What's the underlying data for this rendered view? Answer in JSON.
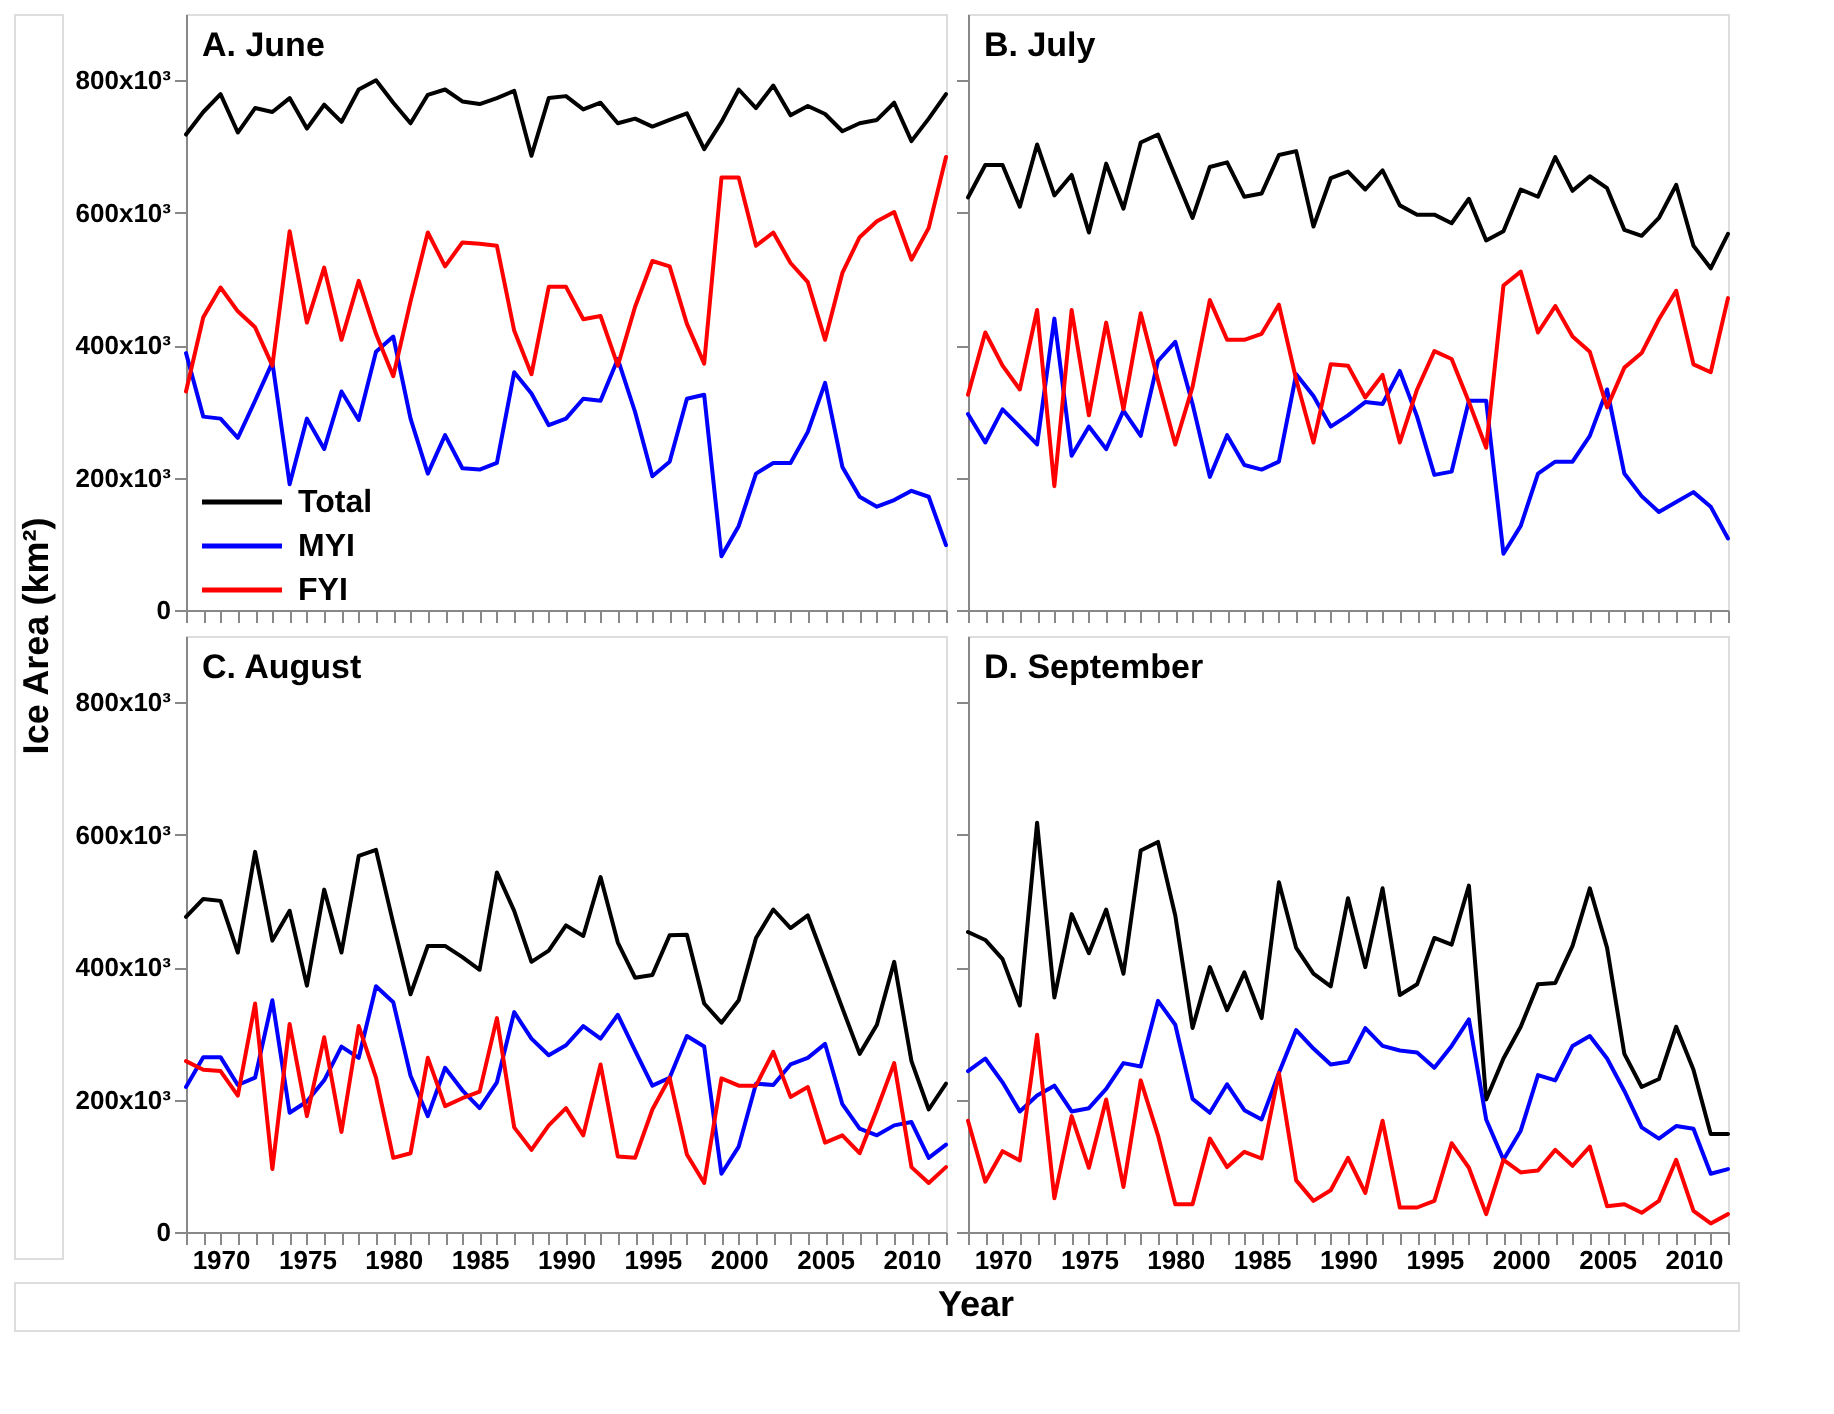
{
  "chart_data": [
    {
      "type": "line",
      "title": "A. June",
      "ylabel": "Ice Area (km²)",
      "legend": "bottom left",
      "grid": false,
      "tick_labels": "y",
      "xlim": [
        1968,
        2012
      ],
      "ylim": [
        0,
        900000
      ],
      "yticks": [
        0,
        {
          "value": 200000,
          "label": "200x10³"
        },
        {
          "value": 400000,
          "label": "400x10³"
        },
        {
          "value": 600000,
          "label": "600x10³"
        },
        {
          "value": 800000,
          "label": "800x10³"
        }
      ],
      "xticks": [
        {
          "value": 1968,
          "label": null
        },
        {
          "value": 1969,
          "label": null
        },
        1970,
        {
          "value": 1971,
          "label": null
        },
        {
          "value": 1972,
          "label": null
        },
        {
          "value": 1973,
          "label": null
        },
        {
          "value": 1974,
          "label": null
        },
        1975,
        {
          "value": 1976,
          "label": null
        },
        {
          "value": 1977,
          "label": null
        },
        {
          "value": 1978,
          "label": null
        },
        {
          "value": 1979,
          "label": null
        },
        1980,
        {
          "value": 1981,
          "label": null
        },
        {
          "value": 1982,
          "label": null
        },
        {
          "value": 1983,
          "label": null
        },
        {
          "value": 1984,
          "label": null
        },
        1985,
        {
          "value": 1986,
          "label": null
        },
        {
          "value": 1987,
          "label": null
        },
        {
          "value": 1988,
          "label": null
        },
        {
          "value": 1989,
          "label": null
        },
        1990,
        {
          "value": 1991,
          "label": null
        },
        {
          "value": 1992,
          "label": null
        },
        {
          "value": 1993,
          "label": null
        },
        {
          "value": 1994,
          "label": null
        },
        1995,
        {
          "value": 1996,
          "label": null
        },
        {
          "value": 1997,
          "label": null
        },
        {
          "value": 1998,
          "label": null
        },
        {
          "value": 1999,
          "label": null
        },
        2000,
        {
          "value": 2001,
          "label": null
        },
        {
          "value": 2002,
          "label": null
        },
        {
          "value": 2003,
          "label": null
        },
        {
          "value": 2004,
          "label": null
        },
        2005,
        {
          "value": 2006,
          "label": null
        },
        {
          "value": 2007,
          "label": null
        },
        {
          "value": 2008,
          "label": null
        },
        {
          "value": 2009,
          "label": null
        },
        2010,
        {
          "value": 2011,
          "label": null
        },
        {
          "value": 2012,
          "label": null
        }
      ],
      "x": [
        1968,
        1969,
        1970,
        1971,
        1972,
        1973,
        1974,
        1975,
        1976,
        1977,
        1978,
        1979,
        1980,
        1981,
        1982,
        1983,
        1984,
        1985,
        1986,
        1987,
        1988,
        1989,
        1990,
        1991,
        1992,
        1993,
        1994,
        1995,
        1996,
        1997,
        1998,
        1999,
        2000,
        2001,
        2002,
        2003,
        2004,
        2005,
        2006,
        2007,
        2008,
        2009,
        2010,
        2011,
        2012
      ],
      "series": [
        {
          "name": "Total",
          "color": "#000000",
          "values": [
            718000,
            752000,
            779000,
            721000,
            758000,
            752000,
            773000,
            727000,
            763000,
            737000,
            786000,
            800000,
            766000,
            735000,
            778000,
            786000,
            768000,
            764000,
            773000,
            784000,
            686000,
            773000,
            776000,
            756000,
            766000,
            735000,
            742000,
            730000,
            740000,
            750000,
            696000,
            737000,
            786000,
            758000,
            792000,
            747000,
            761000,
            749000,
            723000,
            735000,
            740000,
            766000,
            708000,
            742000,
            779000
          ]
        },
        {
          "name": "MYI",
          "color": "#0000ff",
          "values": [
            388000,
            292000,
            289000,
            260000,
            316000,
            374000,
            190000,
            289000,
            243000,
            330000,
            287000,
            390000,
            413000,
            289000,
            206000,
            264000,
            214000,
            212000,
            222000,
            359000,
            327000,
            279000,
            289000,
            319000,
            316000,
            379000,
            299000,
            202000,
            224000,
            319000,
            325000,
            81000,
            127000,
            206000,
            222000,
            222000,
            269000,
            343000,
            216000,
            171000,
            156000,
            166000,
            180000,
            171000,
            98000
          ]
        },
        {
          "name": "FYI",
          "color": "#ff0000",
          "values": [
            330000,
            442000,
            487000,
            451000,
            427000,
            369000,
            572000,
            434000,
            517000,
            408000,
            497000,
            417000,
            353000,
            466000,
            570000,
            519000,
            555000,
            553000,
            550000,
            422000,
            356000,
            488000,
            488000,
            439000,
            444000,
            369000,
            458000,
            527000,
            519000,
            432000,
            372000,
            653000,
            653000,
            550000,
            570000,
            524000,
            495000,
            408000,
            509000,
            563000,
            587000,
            601000,
            529000,
            577000,
            684000
          ]
        }
      ]
    },
    {
      "type": "line",
      "title": "B. July",
      "grid": false,
      "tick_labels": false,
      "xlim": [
        1968,
        2012
      ],
      "ylim": [
        0,
        900000
      ],
      "yticks": [
        {
          "value": 0,
          "label": null
        },
        {
          "value": 200000,
          "label": null
        },
        {
          "value": 400000,
          "label": null
        },
        {
          "value": 600000,
          "label": null
        },
        {
          "value": 800000,
          "label": null
        }
      ],
      "xticks": [
        {
          "value": 1968,
          "label": null
        },
        {
          "value": 1969,
          "label": null
        },
        1970,
        {
          "value": 1971,
          "label": null
        },
        {
          "value": 1972,
          "label": null
        },
        {
          "value": 1973,
          "label": null
        },
        {
          "value": 1974,
          "label": null
        },
        1975,
        {
          "value": 1976,
          "label": null
        },
        {
          "value": 1977,
          "label": null
        },
        {
          "value": 1978,
          "label": null
        },
        {
          "value": 1979,
          "label": null
        },
        1980,
        {
          "value": 1981,
          "label": null
        },
        {
          "value": 1982,
          "label": null
        },
        {
          "value": 1983,
          "label": null
        },
        {
          "value": 1984,
          "label": null
        },
        1985,
        {
          "value": 1986,
          "label": null
        },
        {
          "value": 1987,
          "label": null
        },
        {
          "value": 1988,
          "label": null
        },
        {
          "value": 1989,
          "label": null
        },
        1990,
        {
          "value": 1991,
          "label": null
        },
        {
          "value": 1992,
          "label": null
        },
        {
          "value": 1993,
          "label": null
        },
        {
          "value": 1994,
          "label": null
        },
        1995,
        {
          "value": 1996,
          "label": null
        },
        {
          "value": 1997,
          "label": null
        },
        {
          "value": 1998,
          "label": null
        },
        {
          "value": 1999,
          "label": null
        },
        2000,
        {
          "value": 2001,
          "label": null
        },
        {
          "value": 2002,
          "label": null
        },
        {
          "value": 2003,
          "label": null
        },
        {
          "value": 2004,
          "label": null
        },
        2005,
        {
          "value": 2006,
          "label": null
        },
        {
          "value": 2007,
          "label": null
        },
        {
          "value": 2008,
          "label": null
        },
        {
          "value": 2009,
          "label": null
        },
        2010,
        {
          "value": 2011,
          "label": null
        },
        {
          "value": 2012,
          "label": null
        }
      ],
      "x": [
        1968,
        1969,
        1970,
        1971,
        1972,
        1973,
        1974,
        1975,
        1976,
        1977,
        1978,
        1979,
        1980,
        1981,
        1982,
        1983,
        1984,
        1985,
        1986,
        1987,
        1988,
        1989,
        1990,
        1991,
        1992,
        1993,
        1994,
        1995,
        1996,
        1997,
        1998,
        1999,
        2000,
        2001,
        2002,
        2003,
        2004,
        2005,
        2006,
        2007,
        2008,
        2009,
        2010,
        2011,
        2012
      ],
      "series": [
        {
          "color": "#000000",
          "values": [
            623000,
            672000,
            672000,
            609000,
            703000,
            626000,
            657000,
            570000,
            674000,
            606000,
            706000,
            718000,
            655000,
            592000,
            669000,
            676000,
            624000,
            629000,
            687000,
            693000,
            579000,
            652000,
            662000,
            635000,
            664000,
            611000,
            597000,
            597000,
            584000,
            621000,
            558000,
            572000,
            635000,
            624000,
            684000,
            633000,
            655000,
            637000,
            574000,
            565000,
            592000,
            642000,
            550000,
            516000,
            568000
          ]
        },
        {
          "color": "#0000ff",
          "values": [
            296000,
            253000,
            303000,
            277000,
            250000,
            440000,
            233000,
            277000,
            243000,
            301000,
            263000,
            376000,
            405000,
            311000,
            201000,
            264000,
            219000,
            212000,
            224000,
            356000,
            323000,
            277000,
            294000,
            314000,
            311000,
            361000,
            292000,
            204000,
            209000,
            316000,
            316000,
            85000,
            127000,
            206000,
            224000,
            224000,
            263000,
            333000,
            206000,
            172000,
            148000,
            163000,
            178000,
            156000,
            108000
          ]
        },
        {
          "color": "#ff0000",
          "values": [
            325000,
            419000,
            369000,
            333000,
            453000,
            187000,
            453000,
            294000,
            434000,
            303000,
            448000,
            347000,
            250000,
            337000,
            468000,
            408000,
            408000,
            417000,
            461000,
            348000,
            253000,
            371000,
            369000,
            321000,
            355000,
            253000,
            333000,
            391000,
            379000,
            314000,
            245000,
            490000,
            511000,
            419000,
            459000,
            413000,
            390000,
            306000,
            366000,
            388000,
            439000,
            482000,
            371000,
            359000,
            471000
          ]
        }
      ]
    },
    {
      "type": "line",
      "title": "C. August",
      "xlabel": "Year",
      "grid": false,
      "xlim": [
        1968,
        2012
      ],
      "ylim": [
        0,
        900000
      ],
      "yticks": [
        0,
        {
          "value": 200000,
          "label": "200x10³"
        },
        {
          "value": 400000,
          "label": "400x10³"
        },
        {
          "value": 600000,
          "label": "600x10³"
        },
        {
          "value": 800000,
          "label": "800x10³"
        }
      ],
      "xticks": [
        {
          "value": 1968,
          "label": null
        },
        {
          "value": 1969,
          "label": null
        },
        1970,
        {
          "value": 1971,
          "label": null
        },
        {
          "value": 1972,
          "label": null
        },
        {
          "value": 1973,
          "label": null
        },
        {
          "value": 1974,
          "label": null
        },
        1975,
        {
          "value": 1976,
          "label": null
        },
        {
          "value": 1977,
          "label": null
        },
        {
          "value": 1978,
          "label": null
        },
        {
          "value": 1979,
          "label": null
        },
        1980,
        {
          "value": 1981,
          "label": null
        },
        {
          "value": 1982,
          "label": null
        },
        {
          "value": 1983,
          "label": null
        },
        {
          "value": 1984,
          "label": null
        },
        1985,
        {
          "value": 1986,
          "label": null
        },
        {
          "value": 1987,
          "label": null
        },
        {
          "value": 1988,
          "label": null
        },
        {
          "value": 1989,
          "label": null
        },
        1990,
        {
          "value": 1991,
          "label": null
        },
        {
          "value": 1992,
          "label": null
        },
        {
          "value": 1993,
          "label": null
        },
        {
          "value": 1994,
          "label": null
        },
        1995,
        {
          "value": 1996,
          "label": null
        },
        {
          "value": 1997,
          "label": null
        },
        {
          "value": 1998,
          "label": null
        },
        {
          "value": 1999,
          "label": null
        },
        2000,
        {
          "value": 2001,
          "label": null
        },
        {
          "value": 2002,
          "label": null
        },
        {
          "value": 2003,
          "label": null
        },
        {
          "value": 2004,
          "label": null
        },
        2005,
        {
          "value": 2006,
          "label": null
        },
        {
          "value": 2007,
          "label": null
        },
        {
          "value": 2008,
          "label": null
        },
        {
          "value": 2009,
          "label": null
        },
        2010,
        {
          "value": 2011,
          "label": null
        },
        {
          "value": 2012,
          "label": null
        }
      ],
      "x": [
        1968,
        1969,
        1970,
        1971,
        1972,
        1973,
        1974,
        1975,
        1976,
        1977,
        1978,
        1979,
        1980,
        1981,
        1982,
        1983,
        1984,
        1985,
        1986,
        1987,
        1988,
        1989,
        1990,
        1991,
        1992,
        1993,
        1994,
        1995,
        1996,
        1997,
        1998,
        1999,
        2000,
        2001,
        2002,
        2003,
        2004,
        2005,
        2006,
        2007,
        2008,
        2009,
        2010,
        2011,
        2012
      ],
      "series": [
        {
          "color": "#000000",
          "values": [
            476000,
            503000,
            500000,
            422000,
            574000,
            440000,
            485000,
            372000,
            517000,
            422000,
            568000,
            577000,
            466000,
            359000,
            432000,
            432000,
            415000,
            396000,
            543000,
            485000,
            408000,
            425000,
            463000,
            447000,
            536000,
            437000,
            384000,
            388000,
            448000,
            449000,
            345000,
            316000,
            350000,
            444000,
            487000,
            459000,
            478000,
            408000,
            338000,
            269000,
            313000,
            408000,
            258000,
            185000,
            224000
          ]
        },
        {
          "color": "#0000ff",
          "values": [
            219000,
            264000,
            264000,
            222000,
            233000,
            350000,
            180000,
            197000,
            229000,
            280000,
            263000,
            371000,
            347000,
            236000,
            175000,
            248000,
            214000,
            187000,
            226000,
            332000,
            292000,
            267000,
            282000,
            311000,
            292000,
            328000,
            274000,
            221000,
            233000,
            296000,
            280000,
            88000,
            129000,
            224000,
            222000,
            253000,
            263000,
            284000,
            193000,
            156000,
            146000,
            161000,
            166000,
            112000,
            132000
          ]
        },
        {
          "color": "#ff0000",
          "values": [
            258000,
            245000,
            243000,
            206000,
            345000,
            95000,
            314000,
            175000,
            294000,
            151000,
            311000,
            233000,
            112000,
            119000,
            263000,
            190000,
            202000,
            212000,
            323000,
            158000,
            124000,
            161000,
            187000,
            146000,
            253000,
            114000,
            112000,
            185000,
            233000,
            117000,
            74000,
            232000,
            221000,
            221000,
            272000,
            204000,
            219000,
            135000,
            146000,
            119000,
            185000,
            255000,
            98000,
            74000,
            98000
          ]
        }
      ]
    },
    {
      "type": "line",
      "title": "D. September",
      "grid": false,
      "tick_labels": "x",
      "xlim": [
        1968,
        2012
      ],
      "ylim": [
        0,
        900000
      ],
      "yticks": [
        {
          "value": 0,
          "label": null
        },
        {
          "value": 200000,
          "label": null
        },
        {
          "value": 400000,
          "label": null
        },
        {
          "value": 600000,
          "label": null
        },
        {
          "value": 800000,
          "label": null
        }
      ],
      "xticks": [
        {
          "value": 1968,
          "label": null
        },
        {
          "value": 1969,
          "label": null
        },
        1970,
        {
          "value": 1971,
          "label": null
        },
        {
          "value": 1972,
          "label": null
        },
        {
          "value": 1973,
          "label": null
        },
        {
          "value": 1974,
          "label": null
        },
        1975,
        {
          "value": 1976,
          "label": null
        },
        {
          "value": 1977,
          "label": null
        },
        {
          "value": 1978,
          "label": null
        },
        {
          "value": 1979,
          "label": null
        },
        1980,
        {
          "value": 1981,
          "label": null
        },
        {
          "value": 1982,
          "label": null
        },
        {
          "value": 1983,
          "label": null
        },
        {
          "value": 1984,
          "label": null
        },
        1985,
        {
          "value": 1986,
          "label": null
        },
        {
          "value": 1987,
          "label": null
        },
        {
          "value": 1988,
          "label": null
        },
        {
          "value": 1989,
          "label": null
        },
        1990,
        {
          "value": 1991,
          "label": null
        },
        {
          "value": 1992,
          "label": null
        },
        {
          "value": 1993,
          "label": null
        },
        {
          "value": 1994,
          "label": null
        },
        1995,
        {
          "value": 1996,
          "label": null
        },
        {
          "value": 1997,
          "label": null
        },
        {
          "value": 1998,
          "label": null
        },
        {
          "value": 1999,
          "label": null
        },
        2000,
        {
          "value": 2001,
          "label": null
        },
        {
          "value": 2002,
          "label": null
        },
        {
          "value": 2003,
          "label": null
        },
        {
          "value": 2004,
          "label": null
        },
        2005,
        {
          "value": 2006,
          "label": null
        },
        {
          "value": 2007,
          "label": null
        },
        {
          "value": 2008,
          "label": null
        },
        {
          "value": 2009,
          "label": null
        },
        2010,
        {
          "value": 2011,
          "label": null
        },
        {
          "value": 2012,
          "label": null
        }
      ],
      "x": [
        1968,
        1969,
        1970,
        1971,
        1972,
        1973,
        1974,
        1975,
        1976,
        1977,
        1978,
        1979,
        1980,
        1981,
        1982,
        1983,
        1984,
        1985,
        1986,
        1987,
        1988,
        1989,
        1990,
        1991,
        1992,
        1993,
        1994,
        1995,
        1996,
        1997,
        1998,
        1999,
        2000,
        2001,
        2002,
        2003,
        2004,
        2005,
        2006,
        2007,
        2008,
        2009,
        2010,
        2011,
        2012
      ],
      "series": [
        {
          "color": "#000000",
          "values": [
            453000,
            441000,
            412000,
            342000,
            618000,
            354000,
            480000,
            421000,
            487000,
            390000,
            576000,
            589000,
            478000,
            308000,
            400000,
            335000,
            392000,
            323000,
            528000,
            429000,
            390000,
            371000,
            504000,
            400000,
            519000,
            358000,
            374000,
            444000,
            434000,
            523000,
            200000,
            262000,
            310000,
            374000,
            376000,
            432000,
            519000,
            429000,
            269000,
            219000,
            231000,
            310000,
            245000,
            148000,
            148000
          ]
        },
        {
          "color": "#0000ff",
          "values": [
            243000,
            262000,
            226000,
            182000,
            206000,
            221000,
            182000,
            187000,
            216000,
            255000,
            250000,
            349000,
            313000,
            201000,
            180000,
            223000,
            184000,
            170000,
            240000,
            305000,
            277000,
            253000,
            257000,
            308000,
            281000,
            274000,
            271000,
            248000,
            281000,
            321000,
            170000,
            109000,
            153000,
            237000,
            229000,
            281000,
            296000,
            262000,
            213000,
            158000,
            141000,
            160000,
            156000,
            88000,
            95000
          ]
        },
        {
          "color": "#ff0000",
          "values": [
            168000,
            76000,
            122000,
            108000,
            298000,
            51000,
            175000,
            97000,
            200000,
            68000,
            229000,
            146000,
            42000,
            42000,
            141000,
            98000,
            121000,
            111000,
            240000,
            78000,
            47000,
            63000,
            112000,
            59000,
            168000,
            37000,
            37000,
            47000,
            134000,
            97000,
            27000,
            109000,
            90000,
            93000,
            124000,
            100000,
            129000,
            39000,
            42000,
            29000,
            47000,
            109000,
            32000,
            13000,
            27000
          ]
        }
      ]
    }
  ]
}
